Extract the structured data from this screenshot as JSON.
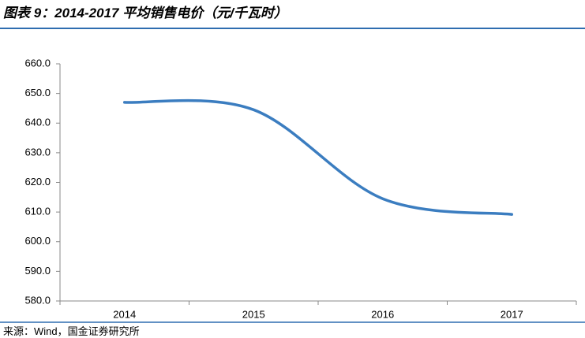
{
  "title": "图表 9：2014-2017 平均销售电价（元/千瓦时）",
  "source": "来源：Wind，国金证券研究所",
  "chart_data": {
    "type": "line",
    "categories": [
      "2014",
      "2015",
      "2016",
      "2017"
    ],
    "values": [
      647,
      644.5,
      614.5,
      609.2
    ],
    "color": "#3b7dc0",
    "smooth": true,
    "ylim": [
      580,
      660
    ],
    "yticks": [
      {
        "value": 580,
        "label": "580.0"
      },
      {
        "value": 590,
        "label": "590.0"
      },
      {
        "value": 600,
        "label": "600.0"
      },
      {
        "value": 610,
        "label": "610.0"
      },
      {
        "value": 620,
        "label": "620.0"
      },
      {
        "value": 630,
        "label": "630.0"
      },
      {
        "value": 640,
        "label": "640.0"
      },
      {
        "value": 650,
        "label": "650.0"
      },
      {
        "value": 660,
        "label": "660.0"
      }
    ],
    "grid": false
  }
}
